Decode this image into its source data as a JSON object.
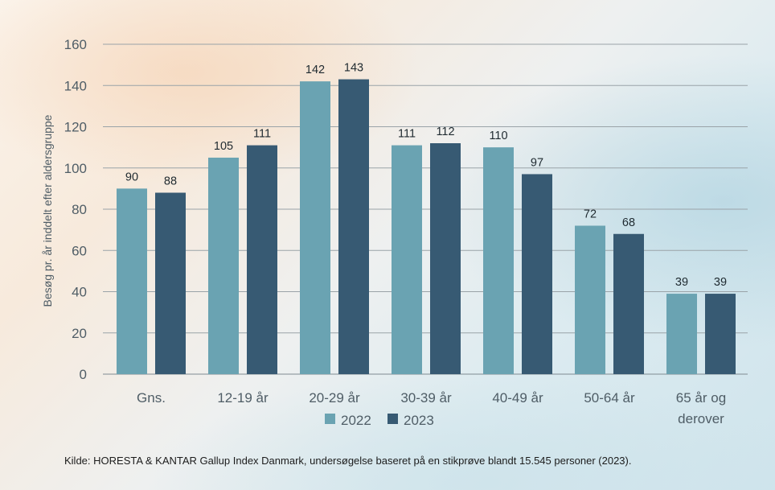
{
  "chart_data": {
    "type": "bar",
    "ylabel": "Besøg pr. år inddelt efter aldersgruppe",
    "xlabel": "",
    "ylim": [
      0,
      160
    ],
    "yticks": [
      0,
      20,
      40,
      60,
      80,
      100,
      120,
      140,
      160
    ],
    "grid": true,
    "legend_position": "bottom",
    "categories": [
      [
        "Gns."
      ],
      [
        "12-19 år"
      ],
      [
        "20-29 år"
      ],
      [
        "30-39 år"
      ],
      [
        "40-49 år"
      ],
      [
        "50-64 år"
      ],
      [
        "65 år og",
        "derover"
      ]
    ],
    "series": [
      {
        "name": "2022",
        "color": "#6aa3b2",
        "values": [
          90,
          105,
          142,
          111,
          110,
          72,
          39
        ]
      },
      {
        "name": "2023",
        "color": "#375a73",
        "values": [
          88,
          111,
          143,
          112,
          97,
          68,
          39
        ]
      }
    ]
  },
  "source": "Kilde: HORESTA & KANTAR Gallup Index Danmark, undersøgelse baseret på en stikprøve blandt 15.545 personer (2023)."
}
